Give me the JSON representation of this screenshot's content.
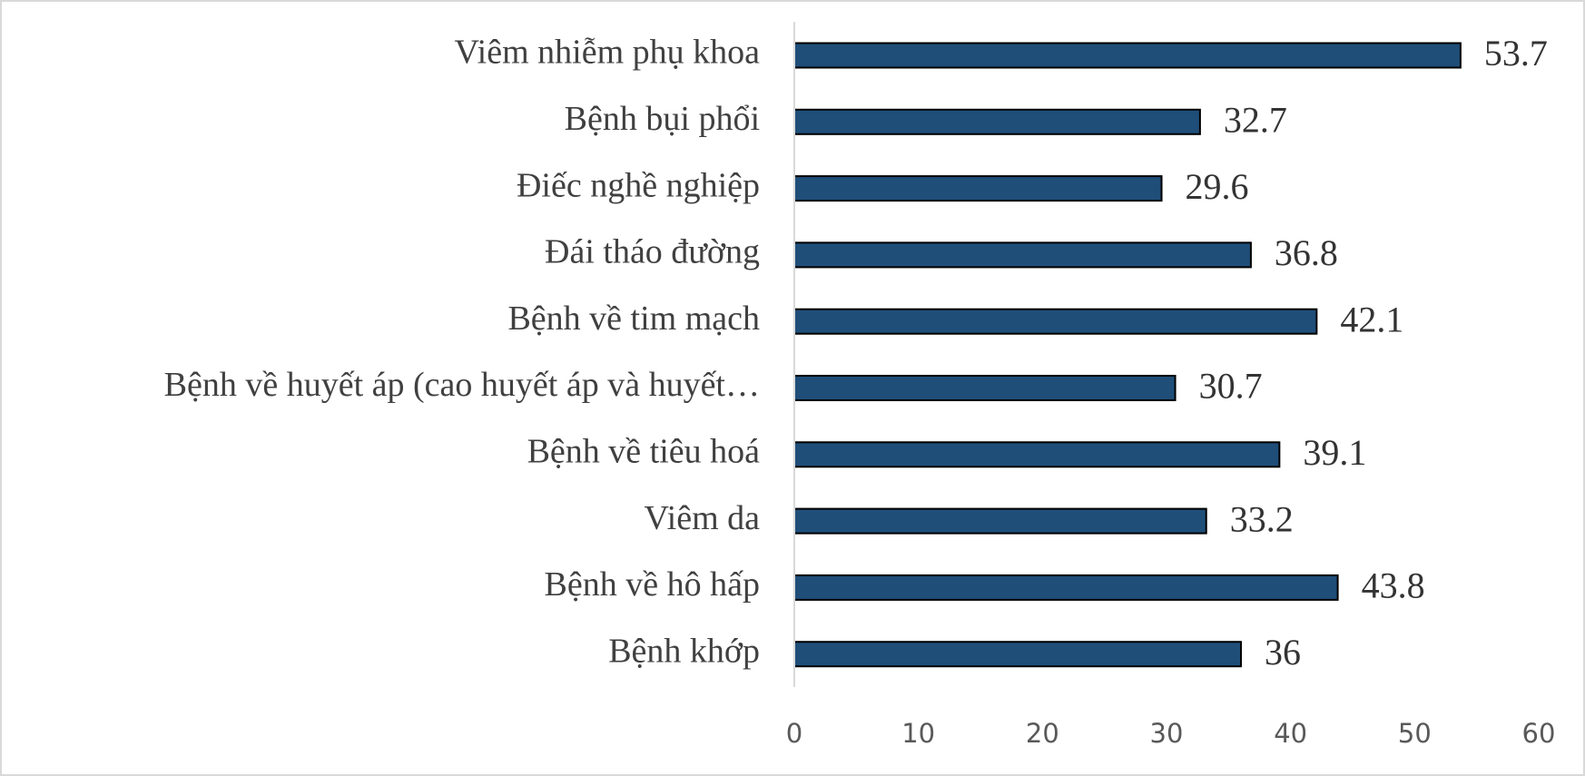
{
  "chart_data": {
    "type": "bar",
    "orientation": "horizontal",
    "categories": [
      "Viêm nhiễm phụ khoa",
      "Bệnh bụi phổi",
      "Điếc nghề nghiệp",
      "Đái tháo đường",
      "Bệnh về tim mạch",
      "Bệnh về huyết áp (cao huyết áp và huyết…",
      "Bệnh về tiêu hoá",
      "Viêm da",
      "Bệnh về hô hấp",
      "Bệnh khớp"
    ],
    "values": [
      53.7,
      32.7,
      29.6,
      36.8,
      42.1,
      30.7,
      39.1,
      33.2,
      43.8,
      36
    ],
    "color": "#1f4e79",
    "xlim": [
      0,
      60
    ],
    "xticks": [
      0,
      10,
      20,
      30,
      40,
      50,
      60
    ],
    "grid": false
  }
}
